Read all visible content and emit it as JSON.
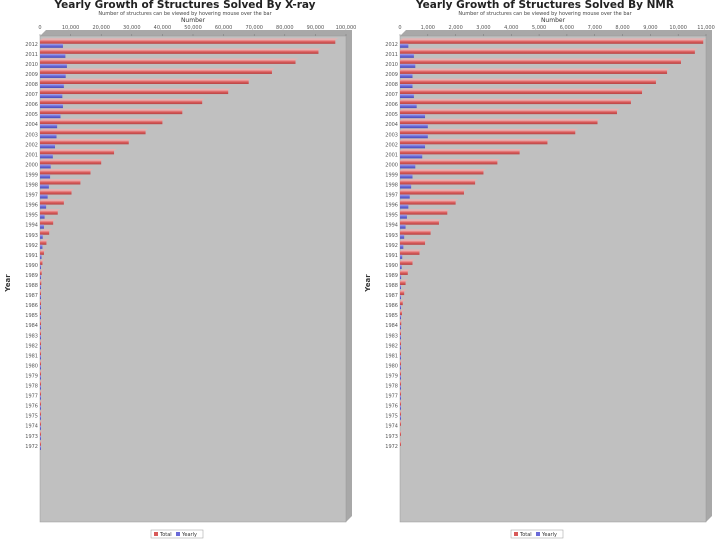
{
  "colors": {
    "total": "#d85a5a",
    "total_light": "#f2a4a4",
    "yearly": "#6a6ad8",
    "yearly_light": "#a9a9ee",
    "plot_bg": "#c0c0c0",
    "plot_side": "#a8a8a8"
  },
  "chart_data": [
    {
      "type": "bar",
      "orientation": "horizontal",
      "title": "Yearly Growth of Structures Solved By X-ray",
      "subtitle": "Number of structures can be viewed by hovering mouse over the bar",
      "xlabel": "Number",
      "ylabel": "Year",
      "xlim": [
        0,
        100000
      ],
      "xticks": [
        "0",
        "10,000",
        "20,000",
        "30,000",
        "40,000",
        "50,000",
        "60,000",
        "70,000",
        "80,000",
        "90,000",
        "100,000"
      ],
      "categories": [
        "2012",
        "2011",
        "2010",
        "2009",
        "2008",
        "2007",
        "2006",
        "2005",
        "2004",
        "2003",
        "2002",
        "2001",
        "2000",
        "1999",
        "1998",
        "1997",
        "1996",
        "1995",
        "1994",
        "1993",
        "1992",
        "1991",
        "1990",
        "1989",
        "1988",
        "1987",
        "1986",
        "1985",
        "1984",
        "1983",
        "1982",
        "1981",
        "1980",
        "1979",
        "1978",
        "1977",
        "1976",
        "1975",
        "1974",
        "1973",
        "1972"
      ],
      "series": [
        {
          "name": "Total",
          "values": [
            96500,
            91000,
            83500,
            75800,
            68200,
            61500,
            53000,
            46500,
            40000,
            34500,
            29000,
            24200,
            20000,
            16500,
            13200,
            10300,
            7800,
            5800,
            4300,
            3000,
            2100,
            1300,
            800,
            550,
            420,
            330,
            260,
            200,
            160,
            130,
            110,
            95,
            80,
            65,
            50,
            35,
            25,
            15,
            10,
            5,
            2
          ]
        },
        {
          "name": "Yearly",
          "values": [
            7500,
            8300,
            8800,
            8400,
            7800,
            7300,
            7500,
            6700,
            5600,
            5400,
            4900,
            4200,
            3500,
            3300,
            2900,
            2500,
            2000,
            1500,
            1300,
            900,
            800,
            500,
            250,
            130,
            90,
            70,
            60,
            40,
            30,
            20,
            15,
            15,
            15,
            15,
            15,
            10,
            10,
            5,
            5,
            3,
            2
          ]
        }
      ],
      "legend": [
        "Total",
        "Yearly"
      ],
      "legend_position": "bottom"
    },
    {
      "type": "bar",
      "orientation": "horizontal",
      "title": "Yearly Growth of Structures Solved By NMR",
      "subtitle": "Number of structures can be viewed by hovering mouse over the bar",
      "xlabel": "Number",
      "ylabel": "Year",
      "xlim": [
        0,
        11000
      ],
      "xticks": [
        "0",
        "1,000",
        "2,000",
        "3,000",
        "4,000",
        "5,000",
        "6,000",
        "7,000",
        "8,000",
        "9,000",
        "10,000",
        "11,000"
      ],
      "categories": [
        "2012",
        "2011",
        "2010",
        "2009",
        "2008",
        "2007",
        "2006",
        "2005",
        "2004",
        "2003",
        "2002",
        "2001",
        "2000",
        "1999",
        "1998",
        "1997",
        "1996",
        "1995",
        "1994",
        "1993",
        "1992",
        "1991",
        "1990",
        "1989",
        "1988",
        "1987",
        "1986",
        "1985",
        "1984",
        "1983",
        "1982",
        "1981",
        "1980",
        "1979",
        "1978",
        "1977",
        "1976",
        "1975",
        "1974",
        "1973",
        "1972"
      ],
      "series": [
        {
          "name": "Total",
          "values": [
            10900,
            10600,
            10100,
            9600,
            9200,
            8700,
            8300,
            7800,
            7100,
            6300,
            5300,
            4300,
            3500,
            3000,
            2700,
            2300,
            2000,
            1700,
            1400,
            1100,
            900,
            700,
            450,
            280,
            200,
            150,
            100,
            70,
            45,
            30,
            20,
            15,
            10,
            8,
            6,
            4,
            3,
            2,
            1,
            1,
            1
          ]
        },
        {
          "name": "Yearly",
          "values": [
            300,
            500,
            550,
            450,
            450,
            500,
            600,
            900,
            1000,
            1000,
            900,
            800,
            550,
            450,
            400,
            350,
            300,
            250,
            200,
            150,
            120,
            80,
            60,
            40,
            25,
            20,
            15,
            10,
            8,
            5,
            4,
            3,
            2,
            2,
            1,
            1,
            1,
            1,
            0,
            0,
            0
          ]
        }
      ],
      "legend": [
        "Total",
        "Yearly"
      ],
      "legend_position": "bottom"
    }
  ]
}
